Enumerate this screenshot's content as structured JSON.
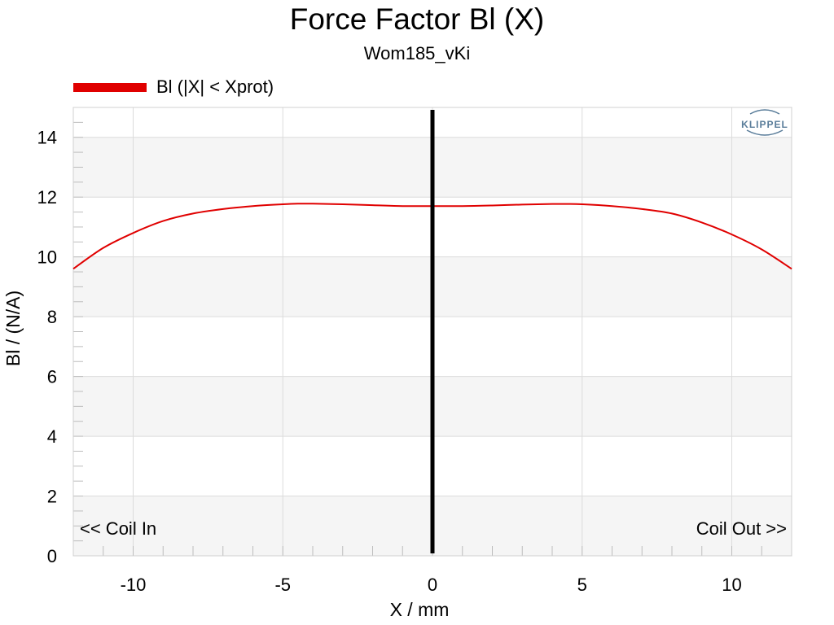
{
  "chart_data": {
    "type": "line",
    "title": "Force Factor Bl (X)",
    "subtitle": "Wom185_vKi",
    "xlabel": "X / mm",
    "ylabel": "Bl / (N/A)",
    "xlim": [
      -12,
      12
    ],
    "ylim": [
      0,
      15
    ],
    "xticks": [
      -10,
      -5,
      0,
      5,
      10
    ],
    "yticks": [
      0,
      2,
      4,
      6,
      8,
      10,
      12,
      14
    ],
    "xtick_labels": [
      "-10",
      "-5",
      "0",
      "5",
      "10"
    ],
    "ytick_labels": [
      "0",
      "2",
      "4",
      "6",
      "8",
      "10",
      "12",
      "14"
    ],
    "grid": true,
    "legend_position": "top-left",
    "annotations": {
      "left": "<< Coil In",
      "right": "Coil Out >>"
    },
    "logo_text": "KLIPPEL",
    "rest_position_marker": {
      "x": 0,
      "color": "#000000"
    },
    "series": [
      {
        "name": "Bl (|X| < Xprot)",
        "color": "#e00000",
        "x": [
          -12,
          -11,
          -10,
          -9,
          -8,
          -7,
          -6,
          -5,
          -4.5,
          -4,
          -3,
          -2,
          -1,
          0,
          1,
          2,
          3,
          4,
          4.5,
          5,
          6,
          7,
          8,
          9,
          10,
          11,
          12
        ],
        "y": [
          9.6,
          10.3,
          10.8,
          11.2,
          11.45,
          11.6,
          11.7,
          11.76,
          11.78,
          11.78,
          11.76,
          11.73,
          11.7,
          11.7,
          11.7,
          11.72,
          11.75,
          11.77,
          11.77,
          11.76,
          11.7,
          11.6,
          11.45,
          11.15,
          10.75,
          10.25,
          9.6
        ]
      }
    ]
  }
}
